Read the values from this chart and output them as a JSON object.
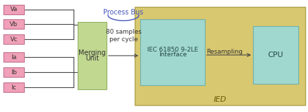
{
  "fig_width": 4.48,
  "fig_height": 1.63,
  "dpi": 100,
  "bg_color": "#ffffff",
  "input_labels": [
    "Va",
    "Vb",
    "Vc",
    "Ia",
    "Ib",
    "Ic"
  ],
  "input_box_color": "#f0a0b8",
  "input_box_edge": "#c07090",
  "merging_box_color": "#c0d890",
  "merging_box_edge": "#90b060",
  "merging_label": [
    "Merging",
    "Unit"
  ],
  "ied_bg_color": "#d8c870",
  "ied_bg_edge": "#b0a050",
  "ied_label": "IED",
  "interface_box_color": "#a0d8d0",
  "interface_box_edge": "#70b0a8",
  "interface_label": [
    "IEC 61850 9-2LE",
    "Interface"
  ],
  "resampling_label": "Resampling",
  "cpu_box_color": "#a0d8d0",
  "cpu_box_edge": "#70b0a8",
  "cpu_label": "CPU",
  "process_bus_label": "Process Bus",
  "samples_label": "80 samples\nper cycle",
  "process_bus_color": "#4455bb",
  "line_color": "#444444",
  "text_color": "#333333",
  "ied_text_color": "#665500"
}
